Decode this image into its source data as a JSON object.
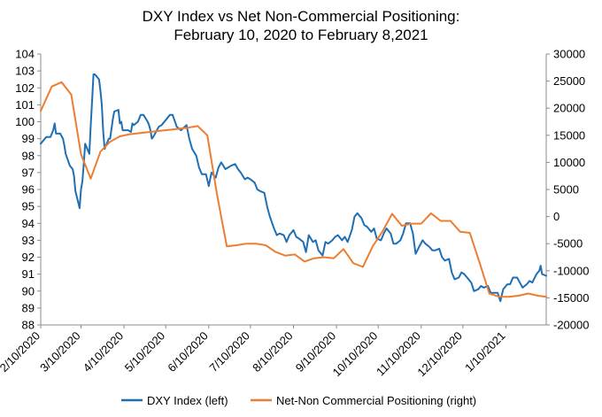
{
  "chart_data": {
    "type": "line",
    "title_lines": [
      "DXY Index vs Net Non-Commercial Positioning:",
      "February 10, 2020 to February 8,2021"
    ],
    "left_axis": {
      "min": 88,
      "max": 104,
      "ticks": [
        "88",
        "89",
        "90",
        "91",
        "92",
        "93",
        "94",
        "95",
        "96",
        "97",
        "98",
        "99",
        "100",
        "101",
        "102",
        "103",
        "104"
      ]
    },
    "right_axis": {
      "min": -20000,
      "max": 30000,
      "ticks": [
        "-20000",
        "-15000",
        "-10000",
        "-5000",
        "0",
        "5000",
        "10000",
        "15000",
        "20000",
        "25000",
        "30000"
      ]
    },
    "x_axis": {
      "start": "2020-02-10",
      "end": "2021-02-08",
      "tick_labels": [
        "2/10/2020",
        "3/10/2020",
        "4/10/2020",
        "5/10/2020",
        "6/10/2020",
        "7/10/2020",
        "8/10/2020",
        "9/10/2020",
        "10/10/2020",
        "11/10/2020",
        "12/10/2020",
        "1/10/2021"
      ]
    },
    "grid": false,
    "legend_position": "bottom",
    "series": [
      {
        "name": "DXY Index (left)",
        "axis": "left",
        "color": "#1f6fb5",
        "points": [
          [
            "2020-02-10",
            98.7
          ],
          [
            "2020-02-12",
            98.9
          ],
          [
            "2020-02-14",
            99.1
          ],
          [
            "2020-02-17",
            99.1
          ],
          [
            "2020-02-19",
            99.5
          ],
          [
            "2020-02-20",
            99.9
          ],
          [
            "2020-02-21",
            99.3
          ],
          [
            "2020-02-24",
            99.3
          ],
          [
            "2020-02-26",
            99.0
          ],
          [
            "2020-02-27",
            98.6
          ],
          [
            "2020-02-28",
            98.1
          ],
          [
            "2020-03-02",
            97.4
          ],
          [
            "2020-03-04",
            97.2
          ],
          [
            "2020-03-05",
            96.8
          ],
          [
            "2020-03-06",
            95.9
          ],
          [
            "2020-03-09",
            94.9
          ],
          [
            "2020-03-10",
            96.0
          ],
          [
            "2020-03-11",
            96.5
          ],
          [
            "2020-03-12",
            97.5
          ],
          [
            "2020-03-13",
            98.7
          ],
          [
            "2020-03-16",
            98.1
          ],
          [
            "2020-03-17",
            99.8
          ],
          [
            "2020-03-18",
            101.2
          ],
          [
            "2020-03-19",
            102.8
          ],
          [
            "2020-03-20",
            102.8
          ],
          [
            "2020-03-23",
            102.5
          ],
          [
            "2020-03-24",
            101.8
          ],
          [
            "2020-03-25",
            101.0
          ],
          [
            "2020-03-26",
            99.4
          ],
          [
            "2020-03-27",
            98.4
          ],
          [
            "2020-03-30",
            99.0
          ],
          [
            "2020-03-31",
            99.0
          ],
          [
            "2020-04-01",
            99.6
          ],
          [
            "2020-04-02",
            100.2
          ],
          [
            "2020-04-03",
            100.6
          ],
          [
            "2020-04-06",
            100.7
          ],
          [
            "2020-04-07",
            99.9
          ],
          [
            "2020-04-08",
            100.0
          ],
          [
            "2020-04-09",
            99.5
          ],
          [
            "2020-04-13",
            99.5
          ],
          [
            "2020-04-15",
            99.4
          ],
          [
            "2020-04-16",
            99.9
          ],
          [
            "2020-04-17",
            99.8
          ],
          [
            "2020-04-20",
            100.0
          ],
          [
            "2020-04-22",
            100.4
          ],
          [
            "2020-04-24",
            100.4
          ],
          [
            "2020-04-27",
            100.0
          ],
          [
            "2020-04-28",
            99.8
          ],
          [
            "2020-04-29",
            99.5
          ],
          [
            "2020-04-30",
            99.0
          ],
          [
            "2020-05-01",
            99.1
          ],
          [
            "2020-05-05",
            99.7
          ],
          [
            "2020-05-07",
            99.8
          ],
          [
            "2020-05-11",
            100.2
          ],
          [
            "2020-05-13",
            100.4
          ],
          [
            "2020-05-15",
            100.4
          ],
          [
            "2020-05-18",
            99.7
          ],
          [
            "2020-05-21",
            99.5
          ],
          [
            "2020-05-25",
            99.8
          ],
          [
            "2020-05-27",
            99.0
          ],
          [
            "2020-05-29",
            98.4
          ],
          [
            "2020-06-01",
            98.0
          ],
          [
            "2020-06-03",
            97.3
          ],
          [
            "2020-06-05",
            96.9
          ],
          [
            "2020-06-08",
            96.9
          ],
          [
            "2020-06-10",
            96.2
          ],
          [
            "2020-06-12",
            97.0
          ],
          [
            "2020-06-15",
            96.7
          ],
          [
            "2020-06-17",
            97.3
          ],
          [
            "2020-06-19",
            97.6
          ],
          [
            "2020-06-22",
            97.2
          ],
          [
            "2020-06-24",
            97.3
          ],
          [
            "2020-06-26",
            97.4
          ],
          [
            "2020-06-29",
            97.5
          ],
          [
            "2020-07-01",
            97.2
          ],
          [
            "2020-07-03",
            97.0
          ],
          [
            "2020-07-06",
            96.6
          ],
          [
            "2020-07-08",
            96.7
          ],
          [
            "2020-07-10",
            96.6
          ],
          [
            "2020-07-13",
            96.4
          ],
          [
            "2020-07-15",
            96.0
          ],
          [
            "2020-07-17",
            95.9
          ],
          [
            "2020-07-20",
            95.8
          ],
          [
            "2020-07-22",
            95.0
          ],
          [
            "2020-07-24",
            94.4
          ],
          [
            "2020-07-27",
            93.7
          ],
          [
            "2020-07-29",
            93.3
          ],
          [
            "2020-07-31",
            93.4
          ],
          [
            "2020-08-03",
            93.3
          ],
          [
            "2020-08-05",
            92.9
          ],
          [
            "2020-08-07",
            93.3
          ],
          [
            "2020-08-10",
            93.6
          ],
          [
            "2020-08-12",
            93.2
          ],
          [
            "2020-08-14",
            93.1
          ],
          [
            "2020-08-17",
            92.9
          ],
          [
            "2020-08-19",
            92.3
          ],
          [
            "2020-08-21",
            93.3
          ],
          [
            "2020-08-24",
            92.9
          ],
          [
            "2020-08-26",
            93.0
          ],
          [
            "2020-08-28",
            92.4
          ],
          [
            "2020-08-31",
            92.1
          ],
          [
            "2020-09-02",
            92.9
          ],
          [
            "2020-09-04",
            92.8
          ],
          [
            "2020-09-07",
            93.0
          ],
          [
            "2020-09-09",
            93.2
          ],
          [
            "2020-09-11",
            93.3
          ],
          [
            "2020-09-14",
            93.0
          ],
          [
            "2020-09-16",
            93.2
          ],
          [
            "2020-09-18",
            92.9
          ],
          [
            "2020-09-21",
            93.6
          ],
          [
            "2020-09-23",
            94.4
          ],
          [
            "2020-09-25",
            94.6
          ],
          [
            "2020-09-28",
            94.3
          ],
          [
            "2020-09-30",
            93.9
          ],
          [
            "2020-10-02",
            93.8
          ],
          [
            "2020-10-05",
            93.5
          ],
          [
            "2020-10-07",
            93.7
          ],
          [
            "2020-10-09",
            93.1
          ],
          [
            "2020-10-12",
            93.0
          ],
          [
            "2020-10-14",
            93.4
          ],
          [
            "2020-10-16",
            93.7
          ],
          [
            "2020-10-19",
            93.4
          ],
          [
            "2020-10-21",
            92.8
          ],
          [
            "2020-10-23",
            92.8
          ],
          [
            "2020-10-26",
            93.0
          ],
          [
            "2020-10-28",
            93.4
          ],
          [
            "2020-10-30",
            94.0
          ],
          [
            "2020-11-02",
            94.0
          ],
          [
            "2020-11-04",
            93.4
          ],
          [
            "2020-11-06",
            92.2
          ],
          [
            "2020-11-09",
            92.7
          ],
          [
            "2020-11-11",
            93.0
          ],
          [
            "2020-11-13",
            92.8
          ],
          [
            "2020-11-16",
            92.6
          ],
          [
            "2020-11-18",
            92.4
          ],
          [
            "2020-11-20",
            92.4
          ],
          [
            "2020-11-23",
            92.5
          ],
          [
            "2020-11-25",
            92.0
          ],
          [
            "2020-11-27",
            91.8
          ],
          [
            "2020-11-30",
            91.9
          ],
          [
            "2020-12-02",
            91.1
          ],
          [
            "2020-12-04",
            90.7
          ],
          [
            "2020-12-07",
            90.8
          ],
          [
            "2020-12-09",
            91.1
          ],
          [
            "2020-12-11",
            91.0
          ],
          [
            "2020-12-14",
            90.7
          ],
          [
            "2020-12-16",
            90.5
          ],
          [
            "2020-12-18",
            90.0
          ],
          [
            "2020-12-21",
            90.1
          ],
          [
            "2020-12-23",
            90.3
          ],
          [
            "2020-12-25",
            90.2
          ],
          [
            "2020-12-28",
            90.3
          ],
          [
            "2020-12-30",
            89.9
          ],
          [
            "2021-01-01",
            89.9
          ],
          [
            "2021-01-04",
            89.9
          ],
          [
            "2021-01-06",
            89.4
          ],
          [
            "2021-01-08",
            90.1
          ],
          [
            "2021-01-11",
            90.4
          ],
          [
            "2021-01-13",
            90.4
          ],
          [
            "2021-01-15",
            90.8
          ],
          [
            "2021-01-18",
            90.8
          ],
          [
            "2021-01-20",
            90.5
          ],
          [
            "2021-01-22",
            90.2
          ],
          [
            "2021-01-25",
            90.4
          ],
          [
            "2021-01-27",
            90.6
          ],
          [
            "2021-01-29",
            90.5
          ],
          [
            "2021-02-01",
            91.0
          ],
          [
            "2021-02-03",
            91.2
          ],
          [
            "2021-02-04",
            91.5
          ],
          [
            "2021-02-05",
            91.0
          ],
          [
            "2021-02-08",
            90.9
          ]
        ]
      },
      {
        "name": "Net-Non Commercial Positioning (right)",
        "axis": "right",
        "color": "#ed7d31",
        "points": [
          [
            "2020-02-10",
            19500
          ],
          [
            "2020-02-18",
            24000
          ],
          [
            "2020-02-25",
            24800
          ],
          [
            "2020-03-03",
            22500
          ],
          [
            "2020-03-10",
            11500
          ],
          [
            "2020-03-17",
            7000
          ],
          [
            "2020-03-24",
            12000
          ],
          [
            "2020-03-31",
            13800
          ],
          [
            "2020-04-07",
            14800
          ],
          [
            "2020-04-14",
            15200
          ],
          [
            "2020-04-21",
            15400
          ],
          [
            "2020-04-28",
            15600
          ],
          [
            "2020-05-05",
            15800
          ],
          [
            "2020-05-12",
            16000
          ],
          [
            "2020-05-19",
            16200
          ],
          [
            "2020-05-26",
            16400
          ],
          [
            "2020-06-02",
            16700
          ],
          [
            "2020-06-09",
            15000
          ],
          [
            "2020-06-16",
            4000
          ],
          [
            "2020-06-23",
            -5500
          ],
          [
            "2020-06-30",
            -5300
          ],
          [
            "2020-07-07",
            -5000
          ],
          [
            "2020-07-14",
            -5000
          ],
          [
            "2020-07-21",
            -5300
          ],
          [
            "2020-07-28",
            -6500
          ],
          [
            "2020-08-04",
            -7200
          ],
          [
            "2020-08-11",
            -7000
          ],
          [
            "2020-08-18",
            -8300
          ],
          [
            "2020-08-25",
            -7700
          ],
          [
            "2020-09-01",
            -7500
          ],
          [
            "2020-09-08",
            -7700
          ],
          [
            "2020-09-15",
            -6000
          ],
          [
            "2020-09-22",
            -8600
          ],
          [
            "2020-09-29",
            -9300
          ],
          [
            "2020-10-06",
            -5500
          ],
          [
            "2020-10-13",
            -2800
          ],
          [
            "2020-10-20",
            500
          ],
          [
            "2020-10-27",
            -1700
          ],
          [
            "2020-11-03",
            -1300
          ],
          [
            "2020-11-10",
            -1300
          ],
          [
            "2020-11-17",
            600
          ],
          [
            "2020-11-24",
            -800
          ],
          [
            "2020-12-01",
            -800
          ],
          [
            "2020-12-08",
            -2800
          ],
          [
            "2020-12-15",
            -3000
          ],
          [
            "2020-12-22",
            -8500
          ],
          [
            "2020-12-29",
            -14200
          ],
          [
            "2021-01-05",
            -14800
          ],
          [
            "2021-01-12",
            -14800
          ],
          [
            "2021-01-19",
            -14600
          ],
          [
            "2021-01-26",
            -14200
          ],
          [
            "2021-02-02",
            -14600
          ],
          [
            "2021-02-08",
            -14800
          ]
        ]
      }
    ]
  }
}
